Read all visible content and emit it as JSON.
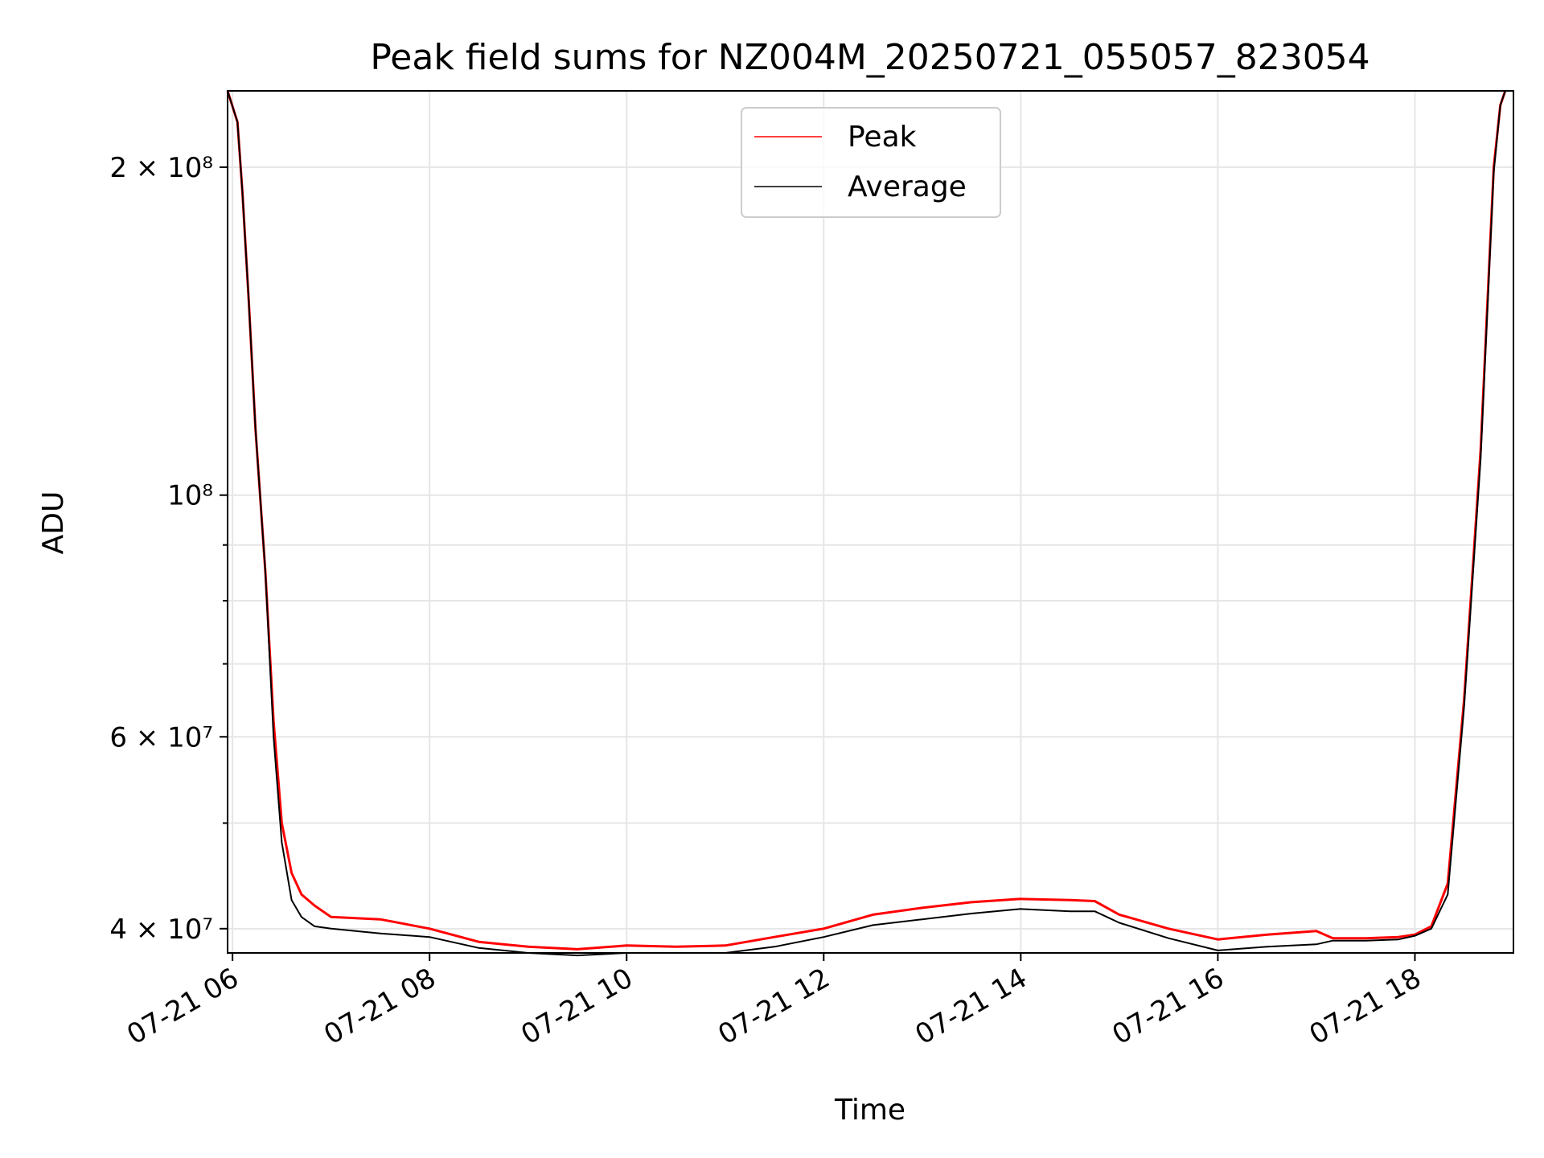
{
  "chart_data": {
    "type": "line",
    "title": "Peak field sums for NZ004M_20250721_055057_823054",
    "xlabel": "Time",
    "ylabel": "ADU",
    "yscale": "log",
    "xlim": [
      "2025-07-21 05:57",
      "2025-07-21 19:00"
    ],
    "ylim": [
      38000000,
      235000000
    ],
    "grid": true,
    "legend_position": "top-center",
    "x_ticks": [
      {
        "label": "07-21 06",
        "value": "2025-07-21 06:00"
      },
      {
        "label": "07-21 08",
        "value": "2025-07-21 08:00"
      },
      {
        "label": "07-21 10",
        "value": "2025-07-21 10:00"
      },
      {
        "label": "07-21 12",
        "value": "2025-07-21 12:00"
      },
      {
        "label": "07-21 14",
        "value": "2025-07-21 14:00"
      },
      {
        "label": "07-21 16",
        "value": "2025-07-21 16:00"
      },
      {
        "label": "07-21 18",
        "value": "2025-07-21 18:00"
      }
    ],
    "y_ticks": [
      {
        "value": 40000000,
        "label": "4 × 10⁷"
      },
      {
        "value": 60000000,
        "label": "6 × 10⁷"
      },
      {
        "value": 100000000,
        "label": "10⁸"
      },
      {
        "value": 200000000,
        "label": "2 × 10⁸"
      }
    ],
    "y_minor_ticks": [
      50000000,
      70000000,
      80000000,
      90000000
    ],
    "series": [
      {
        "name": "Peak",
        "color": "#ff0000",
        "x": [
          "05:57",
          "06:03",
          "06:06",
          "06:10",
          "06:14",
          "06:20",
          "06:25",
          "06:30",
          "06:36",
          "06:42",
          "06:50",
          "07:00",
          "07:30",
          "08:00",
          "08:30",
          "09:00",
          "09:30",
          "10:00",
          "10:30",
          "11:00",
          "11:30",
          "12:00",
          "12:30",
          "13:00",
          "13:30",
          "14:00",
          "14:30",
          "14:45",
          "15:00",
          "15:30",
          "16:00",
          "16:30",
          "17:00",
          "17:10",
          "17:30",
          "17:50",
          "18:00",
          "18:10",
          "18:20",
          "18:30",
          "18:40",
          "18:45",
          "18:48",
          "18:52",
          "18:55"
        ],
        "y": [
          235000000,
          220000000,
          190000000,
          150000000,
          115000000,
          85000000,
          62000000,
          50000000,
          45000000,
          43000000,
          42000000,
          41000000,
          40800000,
          40000000,
          38900000,
          38500000,
          38300000,
          38600000,
          38500000,
          38600000,
          39300000,
          40000000,
          41200000,
          41800000,
          42300000,
          42600000,
          42500000,
          42400000,
          41200000,
          40000000,
          39100000,
          39500000,
          39800000,
          39200000,
          39200000,
          39300000,
          39500000,
          40200000,
          44000000,
          65000000,
          110000000,
          160000000,
          200000000,
          228000000,
          235000000
        ]
      },
      {
        "name": "Average",
        "color": "#000000",
        "x": [
          "05:57",
          "06:03",
          "06:06",
          "06:10",
          "06:14",
          "06:20",
          "06:25",
          "06:30",
          "06:36",
          "06:42",
          "06:50",
          "07:00",
          "07:30",
          "08:00",
          "08:30",
          "09:00",
          "09:30",
          "10:00",
          "10:30",
          "11:00",
          "11:30",
          "12:00",
          "12:30",
          "13:00",
          "13:30",
          "14:00",
          "14:30",
          "14:45",
          "15:00",
          "15:30",
          "16:00",
          "16:30",
          "17:00",
          "17:10",
          "17:30",
          "17:50",
          "18:00",
          "18:10",
          "18:20",
          "18:30",
          "18:40",
          "18:45",
          "18:48",
          "18:52",
          "18:55"
        ],
        "y": [
          235000000,
          220000000,
          190000000,
          150000000,
          115000000,
          85000000,
          60000000,
          48000000,
          42500000,
          41000000,
          40200000,
          40000000,
          39600000,
          39300000,
          38400000,
          38000000,
          37800000,
          38000000,
          38000000,
          38000000,
          38500000,
          39300000,
          40300000,
          40800000,
          41300000,
          41700000,
          41500000,
          41500000,
          40500000,
          39200000,
          38200000,
          38500000,
          38700000,
          39000000,
          39000000,
          39100000,
          39400000,
          40000000,
          43000000,
          64000000,
          108000000,
          158000000,
          198000000,
          228000000,
          235000000
        ]
      }
    ]
  }
}
